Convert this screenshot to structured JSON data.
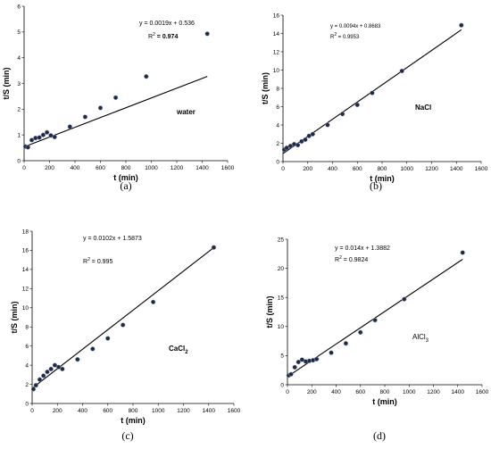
{
  "chart_data": [
    {
      "type": "scatter",
      "panel_label": "(a)",
      "annotation": "water",
      "equation": "y = 0.0019x + 0.536",
      "r2_prefix": "R",
      "r2_sup": "2",
      "r2_value": " = 0.974",
      "xlabel": "t (min)",
      "ylabel": "t/S (min)",
      "xlim": [
        0,
        1600
      ],
      "ylim": [
        0,
        6
      ],
      "xticks": [
        0,
        200,
        400,
        600,
        800,
        1000,
        1200,
        1400,
        1600
      ],
      "yticks": [
        0,
        1,
        2,
        3,
        4,
        5,
        6
      ],
      "trendline": {
        "slope": 0.0019,
        "intercept": 0.536,
        "x_range": [
          0,
          1440
        ]
      },
      "points": {
        "x": [
          10,
          30,
          60,
          90,
          120,
          150,
          180,
          210,
          240,
          360,
          480,
          600,
          720,
          960,
          1440
        ],
        "y": [
          0.55,
          0.52,
          0.8,
          0.88,
          0.9,
          1.0,
          1.1,
          0.98,
          0.92,
          1.32,
          1.7,
          2.05,
          2.45,
          3.27,
          4.93
        ]
      }
    },
    {
      "type": "scatter",
      "panel_label": "(b)",
      "annotation": "NaCl",
      "equation": "y = 0.0094x + 0.8683",
      "r2_prefix": "R",
      "r2_sup": "2",
      "r2_value": " = 0.9953",
      "xlabel": "t (min)",
      "ylabel": "t/S (min)",
      "xlim": [
        0,
        1600
      ],
      "ylim": [
        0,
        16
      ],
      "xticks": [
        0,
        200,
        400,
        600,
        800,
        1000,
        1200,
        1400,
        1600
      ],
      "yticks": [
        0,
        2,
        4,
        6,
        8,
        10,
        12,
        14,
        16
      ],
      "trendline": {
        "slope": 0.0094,
        "intercept": 0.8683,
        "x_range": [
          0,
          1440
        ]
      },
      "points": {
        "x": [
          10,
          30,
          60,
          90,
          120,
          150,
          180,
          210,
          240,
          360,
          480,
          600,
          720,
          960,
          1440
        ],
        "y": [
          1.3,
          1.5,
          1.7,
          1.9,
          1.8,
          2.2,
          2.4,
          2.8,
          3.0,
          4.0,
          5.2,
          6.2,
          7.5,
          9.9,
          14.9
        ]
      }
    },
    {
      "type": "scatter",
      "panel_label": "(c)",
      "annotation": "CaCl",
      "annotation_sub": "2",
      "equation": "y = 0.0102x + 1.5873",
      "r2_prefix": "R",
      "r2_sup": "2",
      "r2_value": " = 0.995",
      "xlabel": "t (min)",
      "ylabel": "t/S (min)",
      "xlim": [
        0,
        1600
      ],
      "ylim": [
        0,
        18
      ],
      "xticks": [
        0,
        200,
        400,
        600,
        800,
        1000,
        1200,
        1400,
        1600
      ],
      "yticks": [
        0,
        2,
        4,
        6,
        8,
        10,
        12,
        14,
        16,
        18
      ],
      "trendline": {
        "slope": 0.0102,
        "intercept": 1.5873,
        "x_range": [
          0,
          1440
        ]
      },
      "points": {
        "x": [
          10,
          30,
          60,
          90,
          120,
          150,
          180,
          210,
          240,
          360,
          480,
          600,
          720,
          960,
          1440
        ],
        "y": [
          1.5,
          1.9,
          2.5,
          2.9,
          3.3,
          3.6,
          4.0,
          3.8,
          3.6,
          4.6,
          5.7,
          6.8,
          8.2,
          10.6,
          16.3
        ]
      }
    },
    {
      "type": "scatter",
      "panel_label": "(d)",
      "annotation": "AlCl",
      "annotation_sub": "3",
      "equation": "y = 0.014x + 1.3882",
      "r2_prefix": "R",
      "r2_sup": "2",
      "r2_value": " = 0.9824",
      "xlabel": "t (min)",
      "ylabel": "t/S (min)",
      "xlim": [
        0,
        1600
      ],
      "ylim": [
        0,
        25
      ],
      "xticks": [
        0,
        200,
        400,
        600,
        800,
        1000,
        1200,
        1400,
        1600
      ],
      "yticks": [
        0,
        5,
        10,
        15,
        20,
        25
      ],
      "trendline": {
        "slope": 0.014,
        "intercept": 1.3882,
        "x_range": [
          0,
          1440
        ]
      },
      "points": {
        "x": [
          10,
          30,
          60,
          90,
          120,
          150,
          180,
          210,
          240,
          360,
          480,
          600,
          720,
          960,
          1440
        ],
        "y": [
          1.6,
          1.8,
          3.0,
          3.9,
          4.3,
          4.0,
          4.1,
          4.2,
          4.4,
          5.5,
          7.1,
          9.0,
          11.1,
          14.7,
          22.7
        ]
      }
    }
  ]
}
